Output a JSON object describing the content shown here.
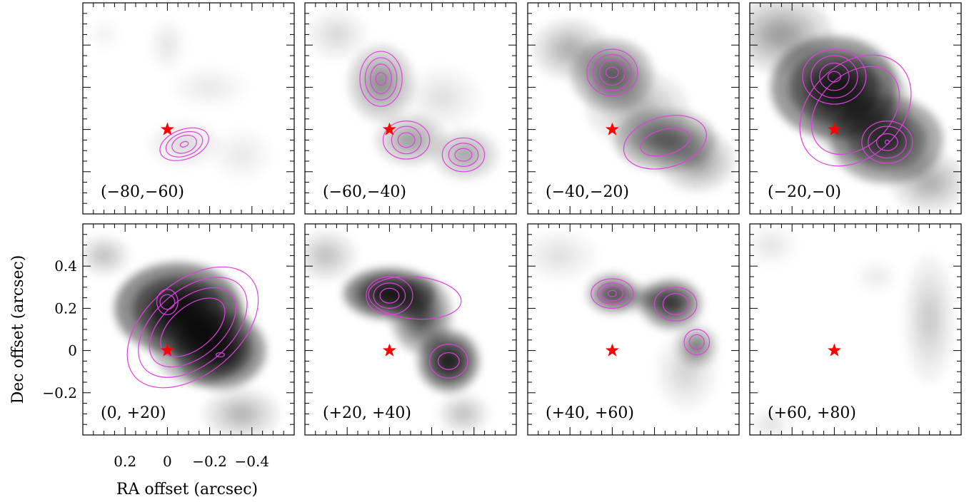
{
  "chart_data": {
    "type": "heatmap",
    "description_kind": "channel maps (grayscale intensity with magenta contours)",
    "xlabel": "RA offset (arcsec)",
    "ylabel": "Dec offset (arcsec)",
    "xlim": [
      0.4,
      -0.6
    ],
    "ylim": [
      -0.4,
      0.6
    ],
    "x_ticks": [
      0.2,
      0,
      -0.2,
      -0.4
    ],
    "x_tick_labels": [
      "0.2",
      "0",
      "−0.2",
      "−0.4"
    ],
    "y_ticks": [
      0.4,
      0.2,
      0,
      -0.2
    ],
    "y_tick_labels": [
      "0.4",
      "0.2",
      "0",
      "−0.2"
    ],
    "star": {
      "x": 0,
      "y": 0,
      "color": "#ff0000"
    },
    "colors": {
      "contour": "#e040e0",
      "star": "#ff0000",
      "map": "#000000"
    },
    "panels": [
      {
        "label": "(−80,−60)",
        "blobs": [
          [
            -0.08,
            -0.07,
            0.14,
            0.09,
            0.18
          ],
          [
            0.0,
            0.4,
            0.07,
            0.1,
            0.12
          ],
          [
            -0.2,
            0.2,
            0.15,
            0.08,
            0.1
          ],
          [
            -0.35,
            -0.12,
            0.12,
            0.1,
            0.1
          ],
          [
            0.3,
            0.45,
            0.06,
            0.06,
            0.08
          ]
        ],
        "contours": [
          {
            "x": -0.08,
            "y": -0.07,
            "rx": [
              0.12,
              0.09,
              0.06,
              0.02
            ],
            "ry": [
              0.07,
              0.055,
              0.04,
              0.012
            ],
            "rot": 20
          }
        ]
      },
      {
        "label": "(−60,−40)",
        "blobs": [
          [
            0.04,
            0.22,
            0.13,
            0.15,
            0.6
          ],
          [
            -0.1,
            -0.05,
            0.14,
            0.1,
            0.5
          ],
          [
            -0.36,
            -0.12,
            0.13,
            0.1,
            0.45
          ],
          [
            0.25,
            0.45,
            0.12,
            0.1,
            0.18
          ],
          [
            -0.25,
            0.15,
            0.15,
            0.12,
            0.15
          ]
        ],
        "contours": [
          {
            "x": 0.04,
            "y": 0.24,
            "rx": [
              0.1,
              0.075,
              0.05,
              0.025
            ],
            "ry": [
              0.13,
              0.1,
              0.07,
              0.03
            ],
            "rot": 0
          },
          {
            "x": -0.08,
            "y": -0.05,
            "rx": [
              0.11,
              0.07,
              0.04
            ],
            "ry": [
              0.09,
              0.065,
              0.035
            ],
            "rot": 0
          },
          {
            "x": -0.35,
            "y": -0.12,
            "rx": [
              0.1,
              0.07,
              0.04
            ],
            "ry": [
              0.08,
              0.055,
              0.03
            ],
            "rot": 0
          }
        ]
      },
      {
        "label": "(−40,−20)",
        "blobs": [
          [
            0.0,
            0.26,
            0.16,
            0.14,
            1.0
          ],
          [
            -0.25,
            -0.05,
            0.2,
            0.12,
            1.0
          ],
          [
            0.2,
            0.38,
            0.15,
            0.12,
            0.4
          ],
          [
            -0.12,
            0.1,
            0.2,
            0.15,
            0.35
          ],
          [
            -0.4,
            -0.15,
            0.15,
            0.12,
            0.5
          ]
        ],
        "contours": [
          {
            "x": 0.0,
            "y": 0.27,
            "rx": [
              0.12,
              0.09,
              0.06,
              0.03
            ],
            "ry": [
              0.11,
              0.085,
              0.06,
              0.025
            ],
            "rot": 0
          },
          {
            "x": -0.25,
            "y": -0.06,
            "rx": [
              0.2,
              0.12
            ],
            "ry": [
              0.12,
              0.06
            ],
            "rot": 15
          }
        ]
      },
      {
        "label": "(−20,−0)",
        "blobs": [
          [
            0.0,
            0.2,
            0.25,
            0.2,
            1.8
          ],
          [
            -0.25,
            -0.05,
            0.22,
            0.17,
            1.5
          ],
          [
            0.25,
            0.45,
            0.2,
            0.15,
            0.5
          ],
          [
            -0.45,
            -0.25,
            0.15,
            0.12,
            0.4
          ],
          [
            -0.12,
            0.1,
            0.2,
            0.2,
            0.8
          ]
        ],
        "contours": [
          {
            "x": 0.0,
            "y": 0.25,
            "rx": [
              0.15,
              0.11,
              0.07,
              0.03
            ],
            "ry": [
              0.13,
              0.1,
              0.065,
              0.025
            ],
            "rot": 0
          },
          {
            "x": -0.25,
            "y": -0.06,
            "rx": [
              0.12,
              0.09,
              0.05,
              0.01
            ],
            "ry": [
              0.1,
              0.075,
              0.04,
              0.01
            ],
            "rot": 0
          },
          {
            "x": -0.1,
            "y": 0.09,
            "rx": [
              0.3,
              0.24
            ],
            "ry": [
              0.22,
              0.17
            ],
            "rot": 45
          }
        ]
      },
      {
        "label": "(0, +20)",
        "blobs": [
          [
            -0.05,
            0.2,
            0.25,
            0.18,
            2.0
          ],
          [
            -0.25,
            0.0,
            0.18,
            0.15,
            1.8
          ],
          [
            0.3,
            0.45,
            0.1,
            0.08,
            0.3
          ],
          [
            -0.35,
            -0.3,
            0.15,
            0.1,
            0.35
          ],
          [
            -0.15,
            0.08,
            0.2,
            0.2,
            1.2
          ]
        ],
        "contours": [
          {
            "x": 0.0,
            "y": 0.23,
            "rx": [
              0.05,
              0.035
            ],
            "ry": [
              0.06,
              0.035
            ],
            "rot": 0
          },
          {
            "x": -0.25,
            "y": -0.02,
            "rx": [
              0.02
            ],
            "ry": [
              0.01
            ],
            "rot": 0
          },
          {
            "x": -0.12,
            "y": 0.11,
            "rx": [
              0.36,
              0.3,
              0.24,
              0.18
            ],
            "ry": [
              0.22,
              0.18,
              0.14,
              0.1
            ],
            "rot": 40
          }
        ]
      },
      {
        "label": "(+20, +40)",
        "blobs": [
          [
            0.0,
            0.27,
            0.18,
            0.1,
            2.0
          ],
          [
            -0.28,
            -0.05,
            0.12,
            0.12,
            1.8
          ],
          [
            -0.15,
            0.17,
            0.12,
            0.15,
            1.2
          ],
          [
            0.3,
            0.45,
            0.12,
            0.1,
            0.3
          ],
          [
            -0.35,
            -0.3,
            0.1,
            0.08,
            0.3
          ]
        ],
        "contours": [
          {
            "x": 0.0,
            "y": 0.26,
            "rx": [
              0.11,
              0.075,
              0.045
            ],
            "ry": [
              0.09,
              0.06,
              0.035
            ],
            "rot": 0
          },
          {
            "x": -0.12,
            "y": 0.25,
            "rx": [
              0.22
            ],
            "ry": [
              0.1
            ],
            "rot": -5
          },
          {
            "x": -0.28,
            "y": -0.05,
            "rx": [
              0.09,
              0.05
            ],
            "ry": [
              0.08,
              0.04
            ],
            "rot": 0
          }
        ]
      },
      {
        "label": "(+40, +60)",
        "blobs": [
          [
            0.0,
            0.27,
            0.1,
            0.08,
            1.0
          ],
          [
            -0.28,
            0.22,
            0.12,
            0.1,
            1.3
          ],
          [
            -0.4,
            0.02,
            0.08,
            0.08,
            0.7
          ],
          [
            -0.15,
            0.25,
            0.2,
            0.06,
            0.5
          ],
          [
            0.25,
            0.45,
            0.15,
            0.1,
            0.15
          ],
          [
            -0.35,
            -0.1,
            0.12,
            0.15,
            0.2
          ]
        ],
        "contours": [
          {
            "x": 0.0,
            "y": 0.27,
            "rx": [
              0.1,
              0.07,
              0.05,
              0.02
            ],
            "ry": [
              0.07,
              0.05,
              0.035,
              0.015
            ],
            "rot": 0
          },
          {
            "x": -0.3,
            "y": 0.22,
            "rx": [
              0.1,
              0.06
            ],
            "ry": [
              0.08,
              0.05
            ],
            "rot": 0
          },
          {
            "x": -0.4,
            "y": 0.04,
            "rx": [
              0.06,
              0.035
            ],
            "ry": [
              0.06,
              0.035
            ],
            "rot": 0
          }
        ]
      },
      {
        "label": "(+60, +80)",
        "blobs": [
          [
            -0.45,
            0.15,
            0.1,
            0.25,
            0.25
          ],
          [
            -0.2,
            0.35,
            0.08,
            0.06,
            0.1
          ],
          [
            0.3,
            0.5,
            0.1,
            0.08,
            0.12
          ],
          [
            0.3,
            -0.35,
            0.08,
            0.06,
            0.15
          ]
        ],
        "contours": []
      }
    ]
  }
}
